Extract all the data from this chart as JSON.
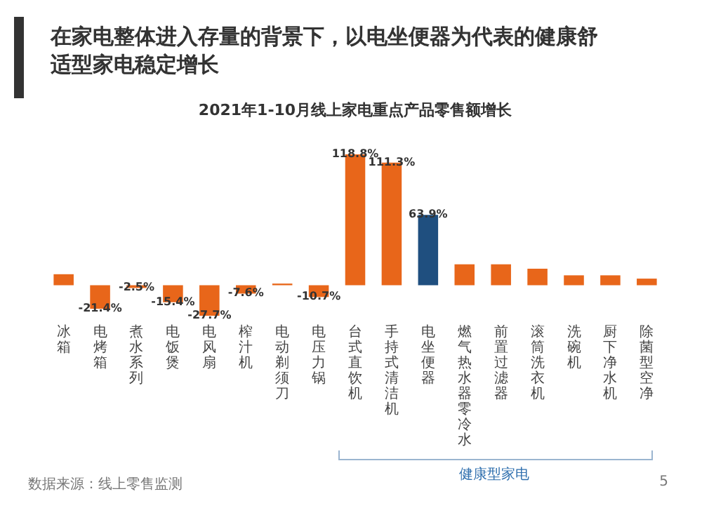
{
  "chart_data": {
    "type": "bar",
    "title": "在家电整体进入存量的背景下，以电坐便器为代表的健康舒适型家电稳定增长",
    "subtitle": "2021年1-10月线上家电重点产品零售额增长",
    "categories": [
      "冰箱",
      "电烤箱",
      "煮水系列",
      "电饭煲",
      "电风扇",
      "榨汁机",
      "电动剃须刀",
      "电压力锅",
      "台式直饮机",
      "手持式清洁机",
      "电坐便器",
      "燃气热水器零冷水",
      "前置过滤器",
      "滚筒洗衣机",
      "洗碗机",
      "厨下净水机",
      "除菌型空净"
    ],
    "values": [
      10,
      -21.4,
      -2.5,
      -15.4,
      -27.7,
      -7.6,
      1.5,
      -10.7,
      118.8,
      111.3,
      63.9,
      19,
      19,
      15,
      9,
      9,
      6
    ],
    "colors": [
      "#e8661a",
      "#e8661a",
      "#e8661a",
      "#e8661a",
      "#e8661a",
      "#e8661a",
      "#e8661a",
      "#e8661a",
      "#e8661a",
      "#e8661a",
      "#1f4f7f",
      "#e8661a",
      "#e8661a",
      "#e8661a",
      "#e8661a",
      "#e8661a",
      "#e8661a"
    ],
    "value_labels": [
      null,
      "-21.4%",
      "-2.5%",
      "-15.4%",
      "-27.7%",
      "-7.6%",
      null,
      "-10.7%",
      "118.8%",
      "111.3%",
      "63.9%",
      null,
      null,
      null,
      null,
      null,
      null
    ],
    "annotations": [
      "健康型家电",
      "数据来源：线上零售监测",
      "5"
    ]
  }
}
